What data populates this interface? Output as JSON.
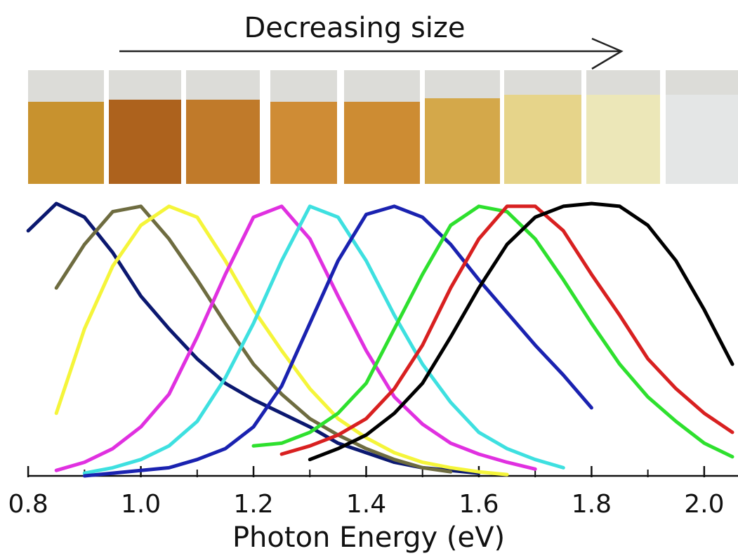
{
  "chart_data": {
    "type": "line",
    "title": "Decreasing size",
    "x_label": "Photon Energy (eV)",
    "x": [
      0.75,
      0.8,
      0.85,
      0.9,
      0.95,
      1.0,
      1.05,
      1.1,
      1.15,
      1.2,
      1.25,
      1.3,
      1.35,
      1.4,
      1.45,
      1.5,
      1.55,
      1.6,
      1.65,
      1.7,
      1.75,
      1.8,
      1.85,
      1.9,
      1.95,
      2.0,
      2.05
    ],
    "series": [
      {
        "color": "#0b1870",
        "values": [
          null,
          0.9,
          1.0,
          0.95,
          0.82,
          0.66,
          0.54,
          0.43,
          0.34,
          0.28,
          0.23,
          0.18,
          0.12,
          0.085,
          0.05,
          0.03,
          0.02,
          0.01,
          null,
          null,
          null,
          null,
          null,
          null,
          null,
          null,
          null
        ]
      },
      {
        "color": "#6e6c40",
        "values": [
          null,
          null,
          0.69,
          0.85,
          0.97,
          0.99,
          0.87,
          0.72,
          0.56,
          0.41,
          0.3,
          0.21,
          0.15,
          0.1,
          0.06,
          0.03,
          0.015,
          null,
          null,
          null,
          null,
          null,
          null,
          null,
          null,
          null,
          null
        ]
      },
      {
        "color": "#f5f53a",
        "values": [
          null,
          null,
          0.23,
          0.54,
          0.77,
          0.92,
          0.99,
          0.95,
          0.79,
          0.61,
          0.46,
          0.32,
          0.21,
          0.14,
          0.085,
          0.05,
          0.03,
          0.015,
          0.005,
          null,
          null,
          null,
          null,
          null,
          null,
          null,
          null
        ]
      },
      {
        "color": "#e030e0",
        "values": [
          null,
          null,
          0.02,
          0.05,
          0.1,
          0.18,
          0.3,
          0.51,
          0.74,
          0.95,
          0.99,
          0.87,
          0.66,
          0.46,
          0.29,
          0.19,
          0.12,
          0.08,
          0.05,
          0.025,
          null,
          null,
          null,
          null,
          null,
          null,
          null
        ]
      },
      {
        "color": "#3ee0e0",
        "values": [
          null,
          null,
          null,
          0.01,
          0.03,
          0.06,
          0.11,
          0.2,
          0.36,
          0.56,
          0.79,
          0.99,
          0.95,
          0.79,
          0.59,
          0.41,
          0.27,
          0.16,
          0.1,
          0.06,
          0.03,
          null,
          null,
          null,
          null,
          null,
          null
        ]
      },
      {
        "color": "#1a22b0",
        "values": [
          null,
          null,
          null,
          0,
          0.01,
          0.02,
          0.03,
          0.06,
          0.1,
          0.18,
          0.33,
          0.56,
          0.79,
          0.96,
          0.99,
          0.95,
          0.85,
          0.72,
          0.6,
          0.48,
          0.37,
          0.25,
          null,
          null,
          null,
          null,
          null
        ]
      },
      {
        "color": "#2ee02e",
        "values": [
          null,
          null,
          null,
          null,
          null,
          null,
          null,
          null,
          null,
          0.11,
          0.12,
          0.16,
          0.23,
          0.34,
          0.54,
          0.74,
          0.92,
          0.99,
          0.97,
          0.87,
          0.72,
          0.56,
          0.41,
          0.29,
          0.2,
          0.12,
          0.07
        ]
      },
      {
        "color": "#d82020",
        "values": [
          null,
          null,
          null,
          null,
          null,
          null,
          null,
          null,
          null,
          null,
          0.08,
          0.11,
          0.15,
          0.21,
          0.32,
          0.48,
          0.69,
          0.87,
          0.99,
          0.99,
          0.9,
          0.74,
          0.59,
          0.43,
          0.32,
          0.23,
          0.16
        ]
      },
      {
        "color": "#000000",
        "values": [
          null,
          null,
          null,
          null,
          null,
          null,
          null,
          null,
          null,
          null,
          null,
          0.06,
          0.1,
          0.15,
          0.23,
          0.34,
          0.51,
          0.69,
          0.85,
          0.95,
          0.99,
          1.0,
          0.99,
          0.92,
          0.79,
          0.61,
          0.41
        ]
      }
    ],
    "xlim": [
      0.75,
      2.06
    ],
    "ylim": [
      0,
      1
    ],
    "xticks": [
      0.8,
      {
        "value": 1,
        "label": "1.0"
      },
      1.2,
      1.4,
      1.6,
      1.8,
      {
        "value": 2,
        "label": "2.0"
      }
    ],
    "xminorticks": [
      0.9,
      1.1,
      1.3,
      1.5,
      1.7,
      1.9
    ],
    "grid": false
  }
}
